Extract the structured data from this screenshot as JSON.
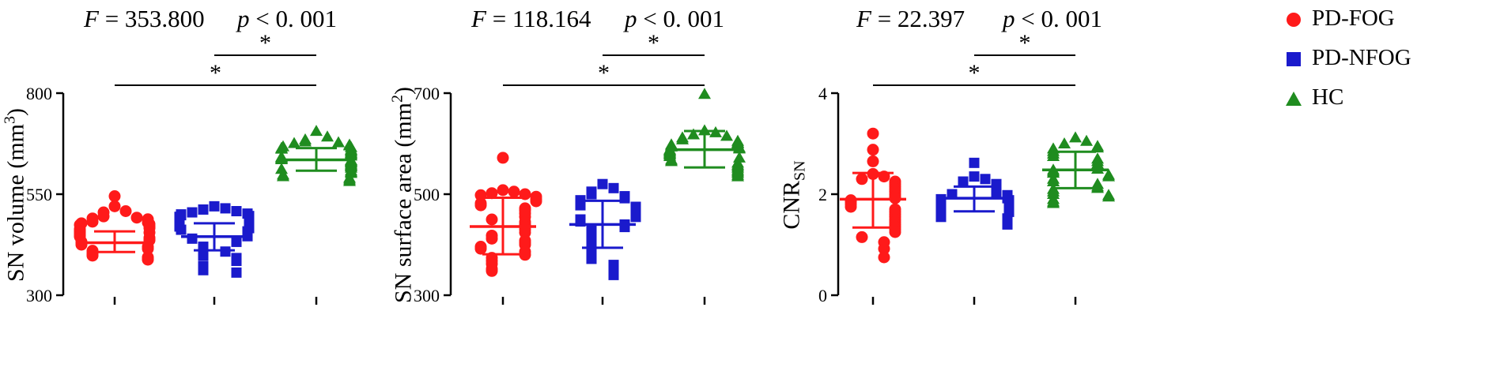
{
  "colors": {
    "PD-FOG": "#ff1a1a",
    "PD-NFOG": "#1a1acc",
    "HC": "#1f8c1f",
    "axis": "#000000"
  },
  "legend": {
    "placement": "top-right",
    "items": [
      {
        "label": "PD-FOG",
        "marker": "circle",
        "color": "#ff1a1a"
      },
      {
        "label": "PD-NFOG",
        "marker": "square",
        "color": "#1a1acc"
      },
      {
        "label": "HC",
        "marker": "triangle",
        "color": "#1f8c1f"
      }
    ]
  },
  "chart_data": [
    {
      "type": "scatter",
      "stats": {
        "f_label": "F",
        "f_value": "= 353.800",
        "p_label": "p",
        "p_value": "< 0. 001"
      },
      "ylabel": {
        "main": "SN volume (mm",
        "sup": "3",
        "sub": "",
        "close": ")"
      },
      "ylim": [
        300,
        800
      ],
      "yticks": [
        "300",
        "550",
        "800"
      ],
      "significance": [
        {
          "from": 1,
          "to": 2,
          "label": "*"
        },
        {
          "from": 0,
          "to": 2,
          "label": "*"
        }
      ],
      "groups": [
        {
          "name": "PD-FOG",
          "marker": "circle",
          "mean": 430,
          "sd_low": 407,
          "sd_high": 458,
          "points": [
            545,
            520,
            508,
            505,
            495,
            492,
            490,
            488,
            482,
            480,
            478,
            476,
            474,
            470,
            468,
            466,
            464,
            460,
            458,
            456,
            455,
            452,
            448,
            445,
            442,
            438,
            436,
            432,
            430,
            425,
            420,
            415,
            410,
            405,
            400,
            398,
            394,
            390,
            388
          ]
        },
        {
          "name": "PD-NFOG",
          "marker": "square",
          "mean": 445,
          "sd_low": 411,
          "sd_high": 478,
          "points": [
            520,
            515,
            512,
            508,
            505,
            502,
            500,
            498,
            496,
            494,
            492,
            490,
            488,
            486,
            484,
            482,
            480,
            478,
            475,
            470,
            466,
            462,
            458,
            455,
            450,
            446,
            440,
            432,
            420,
            408,
            402,
            398,
            392,
            385,
            372,
            368,
            362,
            356
          ]
        },
        {
          "name": "HC",
          "marker": "triangle",
          "mean": 635,
          "sd_low": 608,
          "sd_high": 664,
          "points": [
            706,
            692,
            685,
            680,
            678,
            676,
            672,
            670,
            668,
            666,
            664,
            662,
            660,
            658,
            655,
            652,
            650,
            648,
            645,
            642,
            640,
            638,
            636,
            634,
            632,
            630,
            628,
            625,
            622,
            620,
            618,
            615,
            612,
            608,
            605,
            602,
            598,
            594,
            590,
            586,
            582
          ]
        }
      ]
    },
    {
      "type": "scatter",
      "stats": {
        "f_label": "F",
        "f_value": "= 118.164",
        "p_label": "p",
        "p_value": "< 0. 001"
      },
      "ylabel": {
        "main": "SN surface area (mm",
        "sup": "2",
        "sub": "",
        "close": ")"
      },
      "ylim": [
        300,
        700
      ],
      "yticks": [
        "300",
        "500",
        "700"
      ],
      "significance": [
        {
          "from": 1,
          "to": 2,
          "label": "*"
        },
        {
          "from": 0,
          "to": 2,
          "label": "*"
        }
      ],
      "groups": [
        {
          "name": "PD-FOG",
          "marker": "circle",
          "mean": 436,
          "sd_low": 381,
          "sd_high": 493,
          "points": [
            572,
            508,
            505,
            502,
            500,
            498,
            495,
            490,
            486,
            482,
            478,
            472,
            468,
            462,
            455,
            450,
            445,
            440,
            436,
            430,
            424,
            418,
            412,
            408,
            404,
            400,
            396,
            392,
            386,
            380,
            374,
            368,
            362,
            352,
            348
          ]
        },
        {
          "name": "PD-NFOG",
          "marker": "square",
          "mean": 440,
          "sd_low": 394,
          "sd_high": 487,
          "points": [
            520,
            512,
            505,
            500,
            496,
            492,
            488,
            485,
            482,
            478,
            475,
            472,
            468,
            465,
            462,
            458,
            455,
            450,
            446,
            440,
            435,
            428,
            420,
            412,
            404,
            396,
            388,
            380,
            372,
            360,
            352,
            340
          ]
        },
        {
          "name": "HC",
          "marker": "triangle",
          "mean": 588,
          "sd_low": 553,
          "sd_high": 625,
          "points": [
            698,
            626,
            622,
            618,
            615,
            612,
            608,
            605,
            602,
            600,
            598,
            596,
            594,
            592,
            590,
            588,
            586,
            584,
            582,
            580,
            578,
            575,
            572,
            568,
            565,
            562,
            558,
            555,
            552,
            548,
            545,
            542,
            538,
            535
          ]
        }
      ]
    },
    {
      "type": "scatter",
      "stats": {
        "f_label": "F",
        "f_value": "= 22.397",
        "p_label": "p",
        "p_value": "< 0. 001"
      },
      "ylabel": {
        "main": "CNR",
        "sup": "",
        "sub": "SN",
        "close": ""
      },
      "ylim": [
        0,
        4
      ],
      "yticks": [
        "0",
        "2",
        "4"
      ],
      "significance": [
        {
          "from": 1,
          "to": 2,
          "label": "*"
        },
        {
          "from": 0,
          "to": 2,
          "label": "*"
        }
      ],
      "groups": [
        {
          "name": "PD-FOG",
          "marker": "circle",
          "mean": 1.9,
          "sd_low": 1.34,
          "sd_high": 2.42,
          "points": [
            3.2,
            2.88,
            2.65,
            2.4,
            2.35,
            2.3,
            2.25,
            2.2,
            2.15,
            2.1,
            2.05,
            2.0,
            1.95,
            1.92,
            1.88,
            1.85,
            1.8,
            1.75,
            1.7,
            1.65,
            1.6,
            1.55,
            1.5,
            1.45,
            1.4,
            1.35,
            1.3,
            1.25,
            1.15,
            1.05,
            0.92,
            0.75
          ]
        },
        {
          "name": "PD-NFOG",
          "marker": "square",
          "mean": 1.92,
          "sd_low": 1.66,
          "sd_high": 2.15,
          "points": [
            2.62,
            2.35,
            2.3,
            2.25,
            2.2,
            2.15,
            2.1,
            2.05,
            2.02,
            2.0,
            1.98,
            1.95,
            1.92,
            1.9,
            1.88,
            1.85,
            1.82,
            1.8,
            1.78,
            1.75,
            1.72,
            1.7,
            1.68,
            1.65,
            1.62,
            1.58,
            1.55,
            1.52,
            1.48,
            1.45,
            1.42,
            1.4
          ]
        },
        {
          "name": "HC",
          "marker": "triangle",
          "mean": 2.48,
          "sd_low": 2.12,
          "sd_high": 2.84,
          "points": [
            3.12,
            3.05,
            3.0,
            2.95,
            2.92,
            2.9,
            2.85,
            2.8,
            2.75,
            2.7,
            2.65,
            2.6,
            2.55,
            2.5,
            2.48,
            2.45,
            2.42,
            2.38,
            2.35,
            2.3,
            2.25,
            2.2,
            2.15,
            2.12,
            2.1,
            2.05,
            2.0,
            1.98,
            1.95,
            1.9,
            1.85,
            1.82
          ]
        }
      ]
    }
  ]
}
